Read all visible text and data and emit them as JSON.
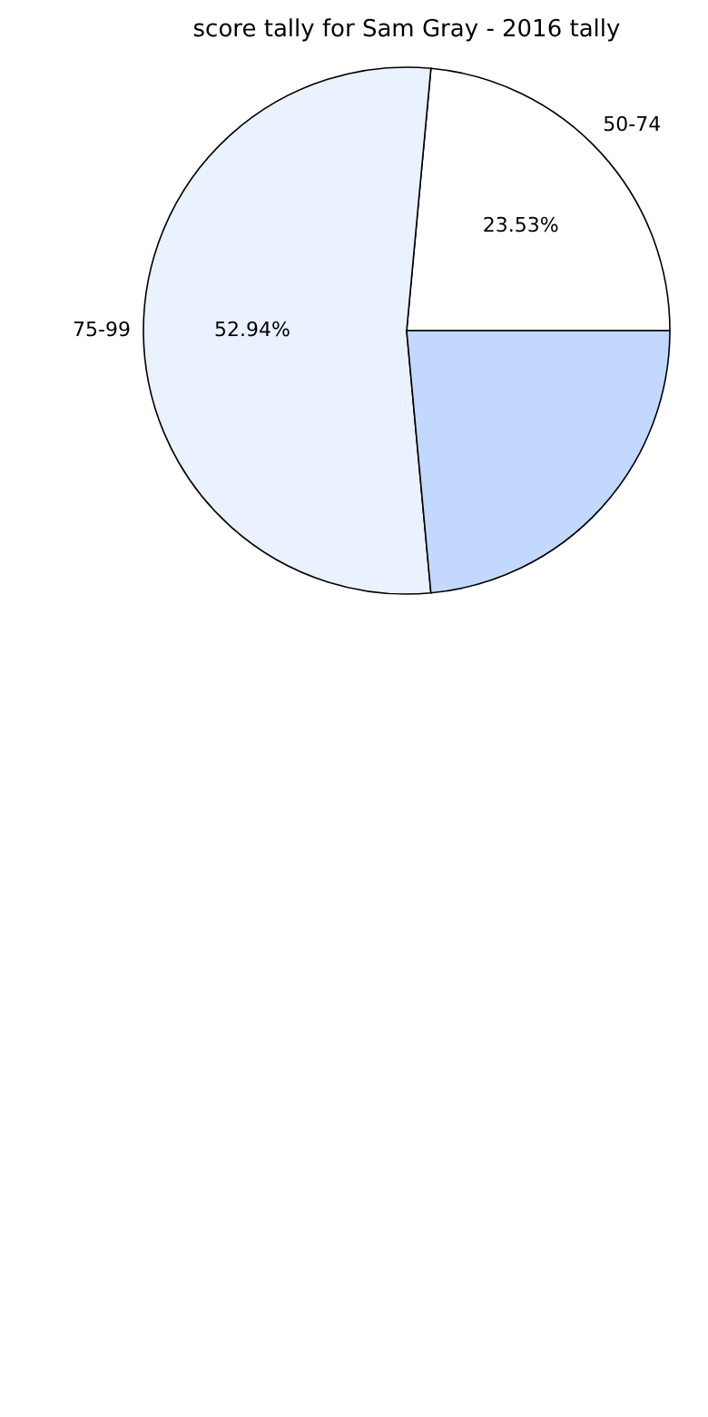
{
  "chart_data": {
    "type": "pie",
    "title": "score tally for Sam Gray - 2016 tally",
    "categories": [
      "50-74",
      "75-99",
      null
    ],
    "values": [
      23.53,
      52.94,
      23.53
    ],
    "value_labels": [
      "23.53%",
      "52.94%",
      null
    ],
    "colors": [
      "#ffffff",
      "#eaf1ff",
      "#c3d8ff"
    ],
    "legend": false
  }
}
